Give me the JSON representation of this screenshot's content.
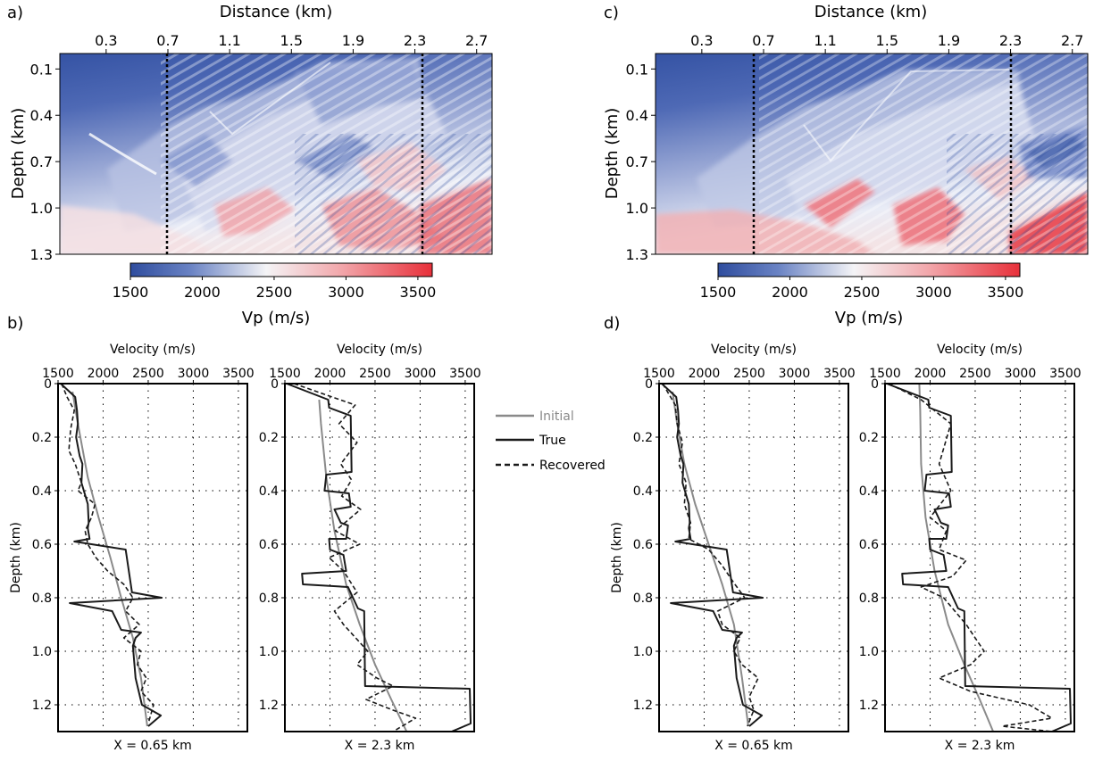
{
  "panel_labels": [
    "a)",
    "b)",
    "c)",
    "d)"
  ],
  "colors": {
    "low": "#2f4d9e",
    "mid": "#f4f4f6",
    "high": "#e8303a",
    "initial": "#8a8a8a",
    "true": "#1a1a1a",
    "recovered": "#1a1a1a"
  },
  "legend": {
    "initial": "Initial",
    "true": "True",
    "recovered": "Recovered"
  },
  "chart_data": [
    {
      "panel": "a)",
      "type": "heatmap",
      "xlabel": "Distance (km)",
      "ylabel": "Depth (km)",
      "xticks": [
        "0.3",
        "0.7",
        "1.1",
        "1.5",
        "1.9",
        "2.3",
        "2.7"
      ],
      "yticks": [
        "0.1",
        "0.4",
        "0.7",
        "1.0",
        "1.3"
      ],
      "xlim": [
        0.0,
        2.8
      ],
      "ylim": [
        0.0,
        1.3
      ],
      "profile_lines_km": [
        0.65,
        2.3
      ],
      "colorbar": {
        "label": "Vp (m/s)",
        "ticks": [
          "1500",
          "2000",
          "2500",
          "3000",
          "3500"
        ],
        "range": [
          1500,
          3600
        ]
      }
    },
    {
      "panel": "c)",
      "type": "heatmap",
      "xlabel": "Distance (km)",
      "ylabel": "Depth (km)",
      "xticks": [
        "0.3",
        "0.7",
        "1.1",
        "1.5",
        "1.9",
        "2.3",
        "2.7"
      ],
      "yticks": [
        "0.1",
        "0.4",
        "0.7",
        "1.0",
        "1.3"
      ],
      "xlim": [
        0.0,
        2.8
      ],
      "ylim": [
        0.0,
        1.3
      ],
      "profile_lines_km": [
        0.65,
        2.3
      ],
      "colorbar": {
        "label": "Vp (m/s)",
        "ticks": [
          "1500",
          "2000",
          "2500",
          "3000",
          "3500"
        ],
        "range": [
          1500,
          3600
        ]
      }
    },
    {
      "panel": "b)",
      "type": "line",
      "xlabel": "Velocity (m/s)",
      "ylabel": "Depth (km)",
      "caption": "X = 0.65 km",
      "xticks": [
        "1500",
        "2000",
        "2500",
        "3000",
        "3500"
      ],
      "yticks": [
        "0",
        "0.2",
        "0.4",
        "0.6",
        "0.8",
        "1.0",
        "1.2"
      ],
      "xlim": [
        1500,
        3600
      ],
      "ylim": [
        0,
        1.3
      ],
      "grid": true,
      "series": [
        {
          "name": "Initial",
          "style": "solid-gray",
          "x": [
            1660,
            1720,
            1830,
            1950,
            2080,
            2200,
            2330,
            2420,
            2490
          ],
          "y": [
            0.03,
            0.15,
            0.35,
            0.5,
            0.65,
            0.8,
            0.95,
            1.1,
            1.28
          ]
        },
        {
          "name": "True",
          "style": "solid",
          "x": [
            1530,
            1690,
            1710,
            1720,
            1700,
            1740,
            1770,
            1760,
            1830,
            1840,
            1830,
            1850,
            1680,
            1870,
            2250,
            2320,
            2650,
            1630,
            2100,
            2200,
            2420,
            2360,
            2330,
            2360,
            2430,
            2640,
            2500
          ],
          "y": [
            0.0,
            0.05,
            0.1,
            0.15,
            0.2,
            0.27,
            0.3,
            0.37,
            0.45,
            0.52,
            0.54,
            0.58,
            0.59,
            0.6,
            0.62,
            0.78,
            0.8,
            0.82,
            0.85,
            0.92,
            0.93,
            0.95,
            0.98,
            1.1,
            1.2,
            1.24,
            1.28
          ]
        },
        {
          "name": "Recovered",
          "style": "dashed",
          "x": [
            1540,
            1600,
            1680,
            1640,
            1620,
            1690,
            1760,
            1720,
            1910,
            1870,
            1800,
            1830,
            1920,
            2050,
            2230,
            2330,
            2250,
            2400,
            2230,
            2420,
            2380,
            2480,
            2420,
            2560,
            2500
          ],
          "y": [
            0.0,
            0.05,
            0.1,
            0.17,
            0.25,
            0.3,
            0.37,
            0.4,
            0.45,
            0.5,
            0.55,
            0.6,
            0.65,
            0.7,
            0.75,
            0.8,
            0.85,
            0.9,
            0.95,
            1.0,
            1.05,
            1.1,
            1.15,
            1.2,
            1.27
          ]
        }
      ]
    },
    {
      "panel": "b)",
      "type": "line",
      "xlabel": "Velocity (m/s)",
      "ylabel": "",
      "caption": "X = 2.3 km",
      "xticks": [
        "1500",
        "2000",
        "2500",
        "3000",
        "3500"
      ],
      "yticks": [
        "0",
        "0.2",
        "0.4",
        "0.6",
        "0.8",
        "1.0",
        "1.2"
      ],
      "xlim": [
        1500,
        3600
      ],
      "ylim": [
        0,
        1.3
      ],
      "grid": true,
      "series": [
        {
          "name": "Initial",
          "style": "solid-gray",
          "x": [
            1880,
            1900,
            1960,
            2050,
            2180,
            2330,
            2500,
            2680,
            2850
          ],
          "y": [
            0.06,
            0.15,
            0.35,
            0.55,
            0.75,
            0.9,
            1.05,
            1.18,
            1.3
          ]
        },
        {
          "name": "True",
          "style": "solid",
          "x": [
            1520,
            1980,
            1990,
            2230,
            2240,
            1960,
            1940,
            2210,
            2230,
            2050,
            2120,
            2200,
            2180,
            1990,
            2000,
            2150,
            2180,
            1690,
            1700,
            2200,
            2310,
            2380,
            2390,
            3550,
            3560,
            3350
          ],
          "y": [
            0.0,
            0.06,
            0.09,
            0.12,
            0.33,
            0.34,
            0.4,
            0.41,
            0.46,
            0.47,
            0.52,
            0.53,
            0.58,
            0.58,
            0.62,
            0.64,
            0.7,
            0.71,
            0.75,
            0.76,
            0.84,
            0.85,
            1.13,
            1.14,
            1.27,
            1.3
          ]
        },
        {
          "name": "Recovered",
          "style": "dashed",
          "x": [
            1600,
            2280,
            2100,
            2300,
            2120,
            2240,
            2130,
            2340,
            2060,
            2330,
            1990,
            2150,
            2300,
            2050,
            2150,
            2420,
            2300,
            2520,
            2700,
            2400,
            2700,
            2950,
            2700
          ],
          "y": [
            0.0,
            0.08,
            0.15,
            0.22,
            0.3,
            0.36,
            0.42,
            0.47,
            0.55,
            0.6,
            0.65,
            0.7,
            0.78,
            0.85,
            0.9,
            1.0,
            1.05,
            1.1,
            1.13,
            1.18,
            1.22,
            1.25,
            1.3
          ]
        }
      ]
    },
    {
      "panel": "d)",
      "type": "line",
      "xlabel": "Velocity (m/s)",
      "ylabel": "Depth (km)",
      "caption": "X = 0.65 km",
      "xticks": [
        "1500",
        "2000",
        "2500",
        "3000",
        "3500"
      ],
      "yticks": [
        "0",
        "0.2",
        "0.4",
        "0.6",
        "0.8",
        "1.0",
        "1.2"
      ],
      "xlim": [
        1500,
        3600
      ],
      "ylim": [
        0,
        1.3
      ],
      "grid": true,
      "series": [
        {
          "name": "Initial",
          "style": "solid-gray",
          "x": [
            1650,
            1700,
            1780,
            1900,
            2050,
            2200,
            2330,
            2420,
            2490
          ],
          "y": [
            0.03,
            0.15,
            0.3,
            0.45,
            0.6,
            0.75,
            0.9,
            1.1,
            1.28
          ]
        },
        {
          "name": "True",
          "style": "solid",
          "x": [
            1530,
            1690,
            1710,
            1720,
            1700,
            1740,
            1770,
            1760,
            1830,
            1840,
            1830,
            1850,
            1680,
            1870,
            2250,
            2320,
            2650,
            1630,
            2100,
            2200,
            2420,
            2360,
            2330,
            2360,
            2430,
            2640,
            2500
          ],
          "y": [
            0.0,
            0.05,
            0.1,
            0.15,
            0.2,
            0.27,
            0.3,
            0.37,
            0.45,
            0.52,
            0.54,
            0.58,
            0.59,
            0.6,
            0.62,
            0.78,
            0.8,
            0.82,
            0.85,
            0.92,
            0.93,
            0.95,
            0.98,
            1.1,
            1.2,
            1.24,
            1.28
          ]
        },
        {
          "name": "Recovered",
          "style": "dashed",
          "x": [
            1540,
            1680,
            1700,
            1760,
            1720,
            1800,
            1780,
            1850,
            1830,
            2050,
            2200,
            2320,
            2450,
            2150,
            2200,
            2400,
            2330,
            2420,
            2600,
            2500,
            2550,
            2480
          ],
          "y": [
            0.0,
            0.08,
            0.15,
            0.22,
            0.3,
            0.37,
            0.45,
            0.52,
            0.58,
            0.62,
            0.68,
            0.74,
            0.8,
            0.85,
            0.9,
            0.95,
            1.0,
            1.05,
            1.1,
            1.17,
            1.22,
            1.28
          ]
        }
      ]
    },
    {
      "panel": "d)",
      "type": "line",
      "xlabel": "Velocity (m/s)",
      "ylabel": "",
      "caption": "X = 2.3 km",
      "xticks": [
        "1500",
        "2000",
        "2500",
        "3000",
        "3500"
      ],
      "yticks": [
        "0",
        "0.2",
        "0.4",
        "0.6",
        "0.8",
        "1.0",
        "1.2"
      ],
      "xlim": [
        1500,
        3600
      ],
      "ylim": [
        0,
        1.3
      ],
      "grid": true,
      "series": [
        {
          "name": "Initial",
          "style": "solid-gray",
          "x": [
            1880,
            1890,
            1900,
            1950,
            2050,
            2200,
            2380,
            2550,
            2700
          ],
          "y": [
            0.0,
            0.1,
            0.3,
            0.5,
            0.7,
            0.9,
            1.05,
            1.18,
            1.3
          ]
        },
        {
          "name": "True",
          "style": "solid",
          "x": [
            1520,
            1980,
            1990,
            2230,
            2240,
            1960,
            1940,
            2210,
            2230,
            2050,
            2120,
            2200,
            2180,
            1990,
            2000,
            2150,
            2180,
            1690,
            1700,
            2200,
            2310,
            2380,
            2390,
            3550,
            3560,
            3350
          ],
          "y": [
            0.0,
            0.06,
            0.09,
            0.12,
            0.33,
            0.34,
            0.4,
            0.41,
            0.46,
            0.47,
            0.52,
            0.53,
            0.58,
            0.58,
            0.62,
            0.64,
            0.7,
            0.71,
            0.75,
            0.76,
            0.84,
            0.85,
            1.13,
            1.14,
            1.27,
            1.3
          ]
        },
        {
          "name": "Recovered",
          "style": "dashed",
          "x": [
            1540,
            1900,
            2230,
            2100,
            2230,
            2000,
            2180,
            2100,
            2400,
            2250,
            1900,
            2150,
            2400,
            2600,
            2450,
            2100,
            2450,
            3100,
            3350,
            2800,
            3350
          ],
          "y": [
            0.0,
            0.06,
            0.15,
            0.3,
            0.4,
            0.5,
            0.55,
            0.62,
            0.66,
            0.72,
            0.76,
            0.8,
            0.9,
            1.0,
            1.05,
            1.1,
            1.15,
            1.2,
            1.25,
            1.28,
            1.3
          ]
        }
      ]
    }
  ]
}
